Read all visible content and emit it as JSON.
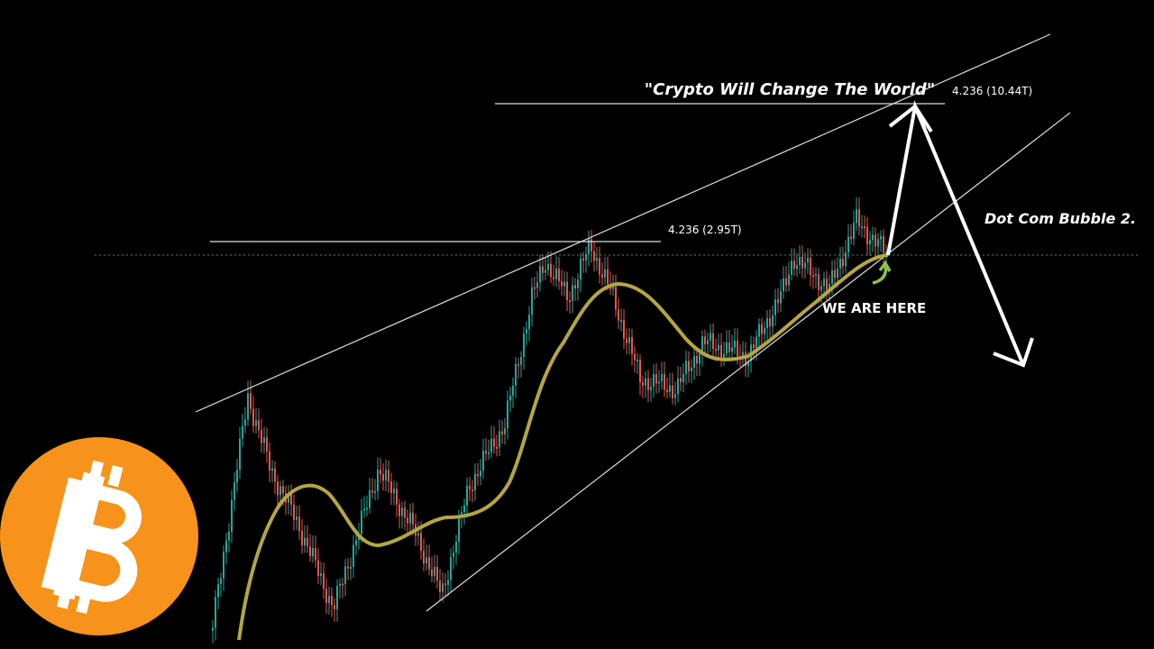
{
  "annotations": {
    "headline": "\"Crypto Will Change The World\"",
    "upper_fib": "4.236 (10.44T)",
    "lower_fib": "4.236 (2.95T)",
    "forecast": "Dot Com Bubble 2.",
    "marker": "WE ARE HERE"
  }
}
